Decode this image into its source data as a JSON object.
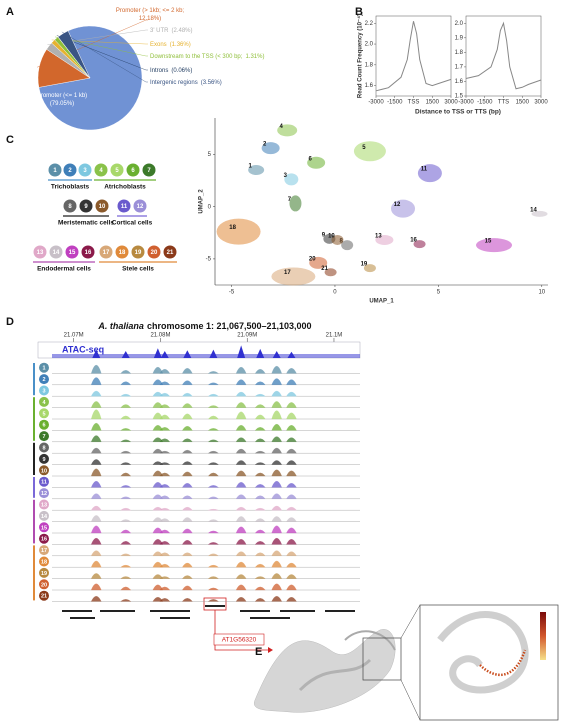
{
  "panel_labels": [
    "A",
    "B",
    "C",
    "D",
    "E"
  ],
  "gene": "AT1G56320",
  "chart_data": [
    {
      "type": "pie",
      "categories": [
        "Promoter (<= 1 kb)",
        "Promoter (> 1kb; <= 2 kb;",
        "3' UTR",
        "Exons",
        "Downstream to the TSS (< 300 bp;",
        "Introns",
        "Intergenic regions"
      ],
      "values": [
        79.05,
        12.18,
        2.48,
        1.36,
        1.31,
        0.06,
        3.56
      ],
      "value_labels": [
        "(79.05%)",
        "12.18%)",
        "(2.48%)",
        "(1.36%)",
        "1.31%)",
        "(0.06%)",
        "(3.56%)"
      ],
      "colors": [
        "#7092d4",
        "#d2672c",
        "#b0b0b0",
        "#e6b22f",
        "#8fbf3a",
        "#1f3a5f",
        "#3a5584"
      ]
    },
    {
      "type": "line",
      "ylabel": "Read Count Frequency (10⁻⁴)",
      "xlabel": "Distance to TSS or TTS (bp)",
      "color": "#888888",
      "x": [
        -3000,
        -2000,
        -1000,
        -500,
        -250,
        0,
        250,
        500,
        1000,
        1500,
        2000,
        3000
      ],
      "values": [
        1.55,
        1.58,
        1.68,
        1.85,
        2.05,
        2.22,
        2.1,
        1.85,
        1.62,
        1.6,
        1.62,
        1.66
      ],
      "xlim": [
        -3000,
        3000
      ],
      "xticks": [
        -3000,
        -1500,
        {
          "value": 0,
          "label": "TSS"
        },
        1500,
        3000
      ],
      "ylim": [
        1.5,
        2.27
      ],
      "yticks": [
        1.6,
        1.8,
        {
          "value": 2,
          "label": "2.0"
        },
        2.2
      ]
    },
    {
      "type": "line",
      "color": "#888888",
      "x": [
        -3000,
        -2000,
        -1000,
        -500,
        -250,
        0,
        250,
        500,
        1000,
        1500,
        2000,
        3000
      ],
      "values": [
        1.62,
        1.64,
        1.7,
        1.82,
        1.95,
        2.0,
        1.88,
        1.7,
        1.55,
        1.56,
        1.58,
        1.61
      ],
      "xlim": [
        -3000,
        3000
      ],
      "xticks": [
        -3000,
        -1500,
        {
          "value": 0,
          "label": "TTS"
        },
        1500,
        3000
      ],
      "ylim": [
        1.5,
        2.05
      ],
      "yticks": [
        1.5,
        1.6,
        1.7,
        1.8,
        1.9,
        {
          "value": 2,
          "label": "2.0"
        }
      ]
    },
    {
      "type": "scatter",
      "xlabel": "UMAP_1",
      "ylabel": "UMAP_2",
      "categories": [
        "1",
        "2",
        "3",
        "4",
        "5",
        "6",
        "7",
        "8",
        "9",
        "10",
        "11",
        "12",
        "13",
        "14",
        "15",
        "16",
        "17",
        "18",
        "19",
        "20",
        "21"
      ],
      "x": [
        -4.1,
        -3.4,
        -2.4,
        -2.6,
        1.4,
        -1.2,
        -2.2,
        0.3,
        -0.56,
        -0.17,
        4.3,
        3.0,
        2.1,
        9.6,
        7.4,
        3.8,
        -2.3,
        -4.95,
        1.4,
        -1.1,
        -0.5
      ],
      "y": [
        3.9,
        6.0,
        3.0,
        7.7,
        5.7,
        4.6,
        0.7,
        -3.3,
        -2.7,
        -2.8,
        3.6,
        0.2,
        -2.8,
        -0.3,
        -3.3,
        -3.2,
        -6.3,
        -2.0,
        -5.5,
        -5.0,
        -5.9
      ],
      "colors": [
        "#5b8fa8",
        "#3f7fb8",
        "#7ec8e0",
        "#8ac24a",
        "#a8d86a",
        "#6ab030",
        "#3c7a2a",
        "#666666",
        "#333333",
        "#8b5a2b",
        "#6a5acd",
        "#9b8fd8",
        "#e0a8c8",
        "#c8c0c8",
        "#c040c0",
        "#8b1a4a",
        "#d8a878",
        "#e08a3a",
        "#b88a40",
        "#d06030",
        "#8b3a1a"
      ],
      "xlim": [
        -5.8,
        10.3
      ],
      "xticks": [
        -5,
        0,
        5,
        10
      ],
      "ylim": [
        -7.5,
        8.5
      ],
      "yticks": [
        -5,
        0,
        5
      ],
      "cluster_groups": [
        {
          "name": "Trichoblasts",
          "color": "#4a90c8",
          "members": [
            0,
            1,
            2
          ]
        },
        {
          "name": "Atrichoblasts",
          "color": "#6ab030",
          "members": [
            3,
            4,
            5,
            6
          ]
        },
        {
          "name": "Meristematic cells",
          "color": "#222222",
          "members": [
            7,
            8,
            9
          ]
        },
        {
          "name": "Cortical cells",
          "color": "#7b68d8",
          "members": [
            10,
            11
          ]
        },
        {
          "name": "Endodermal cells",
          "color": "#b04cb0",
          "members": [
            12,
            13,
            14,
            15
          ]
        },
        {
          "name": "Stele cells",
          "color": "#e08a3a",
          "members": [
            16,
            17,
            18,
            19,
            20
          ]
        }
      ]
    },
    {
      "type": "tracks",
      "title_italic": "A. thaliana",
      "title": "chromosome 1: 21,067,500–21,103,000",
      "xlim": [
        21067500,
        21103000
      ],
      "xticks": [
        {
          "value": 21070000,
          "label": "21.07M"
        },
        {
          "value": 21080000,
          "label": "21.08M"
        },
        {
          "value": 21090000,
          "label": "21.09M"
        },
        {
          "value": 21100000,
          "label": "21.1M"
        }
      ],
      "ylim": [
        0,
        1
      ],
      "x": [
        21072600,
        21076000,
        21079700,
        21080500,
        21083100,
        21086100,
        21089300,
        21091500,
        21093400,
        21095100
      ],
      "atac": {
        "name": "ATAC-seq",
        "color": "#3030d0",
        "values": [
          0.6,
          0.5,
          0.7,
          0.5,
          0.55,
          0.6,
          0.9,
          0.65,
          0.5,
          0.45
        ]
      },
      "series": [
        {
          "name": "1",
          "values": [
            0.8,
            0.3,
            0.6,
            0.4,
            0.5,
            0.2,
            0.6,
            0.4,
            0.7,
            0.5
          ]
        },
        {
          "name": "2",
          "values": [
            0.7,
            0.3,
            0.5,
            0.3,
            0.4,
            0.2,
            0.5,
            0.3,
            0.6,
            0.5
          ]
        },
        {
          "name": "3",
          "values": [
            0.5,
            0.2,
            0.4,
            0.3,
            0.3,
            0.2,
            0.4,
            0.2,
            0.5,
            0.4
          ]
        },
        {
          "name": "4",
          "values": [
            0.6,
            0.3,
            0.5,
            0.3,
            0.4,
            0.2,
            0.5,
            0.3,
            0.6,
            0.5
          ]
        },
        {
          "name": "5",
          "values": [
            0.9,
            0.3,
            0.6,
            0.4,
            0.5,
            0.3,
            0.7,
            0.4,
            0.8,
            0.6
          ]
        },
        {
          "name": "6",
          "values": [
            0.7,
            0.2,
            0.5,
            0.3,
            0.4,
            0.2,
            0.5,
            0.3,
            0.6,
            0.5
          ]
        },
        {
          "name": "7",
          "values": [
            0.6,
            0.2,
            0.4,
            0.3,
            0.3,
            0.2,
            0.4,
            0.3,
            0.5,
            0.4
          ]
        },
        {
          "name": "8",
          "values": [
            0.5,
            0.2,
            0.4,
            0.2,
            0.3,
            0.2,
            0.4,
            0.2,
            0.5,
            0.4
          ]
        },
        {
          "name": "9",
          "values": [
            0.5,
            0.2,
            0.3,
            0.2,
            0.3,
            0.2,
            0.4,
            0.2,
            0.4,
            0.4
          ]
        },
        {
          "name": "10",
          "values": [
            0.7,
            0.3,
            0.5,
            0.3,
            0.4,
            0.3,
            0.5,
            0.3,
            0.6,
            0.5
          ]
        },
        {
          "name": "11",
          "values": [
            0.6,
            0.2,
            0.5,
            0.3,
            0.4,
            0.2,
            0.5,
            0.3,
            0.6,
            0.4
          ]
        },
        {
          "name": "12",
          "values": [
            0.5,
            0.2,
            0.4,
            0.3,
            0.3,
            0.2,
            0.4,
            0.3,
            0.5,
            0.4
          ]
        },
        {
          "name": "13",
          "values": [
            0.4,
            0.2,
            0.3,
            0.2,
            0.3,
            0.1,
            0.3,
            0.2,
            0.4,
            0.3
          ]
        },
        {
          "name": "14",
          "values": [
            0.6,
            0.2,
            0.4,
            0.3,
            0.4,
            0.2,
            0.5,
            0.3,
            0.5,
            0.4
          ]
        },
        {
          "name": "15",
          "values": [
            0.7,
            0.3,
            0.5,
            0.3,
            0.4,
            0.2,
            0.6,
            0.3,
            0.7,
            0.5
          ]
        },
        {
          "name": "16",
          "values": [
            0.6,
            0.3,
            0.5,
            0.3,
            0.4,
            0.2,
            0.5,
            0.3,
            0.6,
            0.5
          ]
        },
        {
          "name": "17",
          "values": [
            0.5,
            0.2,
            0.4,
            0.3,
            0.3,
            0.2,
            0.4,
            0.3,
            0.5,
            0.4
          ]
        },
        {
          "name": "18",
          "values": [
            0.6,
            0.2,
            0.5,
            0.3,
            0.4,
            0.2,
            0.5,
            0.3,
            0.6,
            0.4
          ]
        },
        {
          "name": "19",
          "values": [
            0.5,
            0.2,
            0.4,
            0.2,
            0.3,
            0.2,
            0.4,
            0.2,
            0.5,
            0.4
          ]
        },
        {
          "name": "20",
          "values": [
            0.6,
            0.3,
            0.5,
            0.3,
            0.4,
            0.2,
            0.5,
            0.3,
            0.6,
            0.5
          ]
        },
        {
          "name": "21",
          "values": [
            0.5,
            0.2,
            0.4,
            0.3,
            0.3,
            0.2,
            0.4,
            0.3,
            0.5,
            0.4
          ]
        }
      ]
    }
  ]
}
